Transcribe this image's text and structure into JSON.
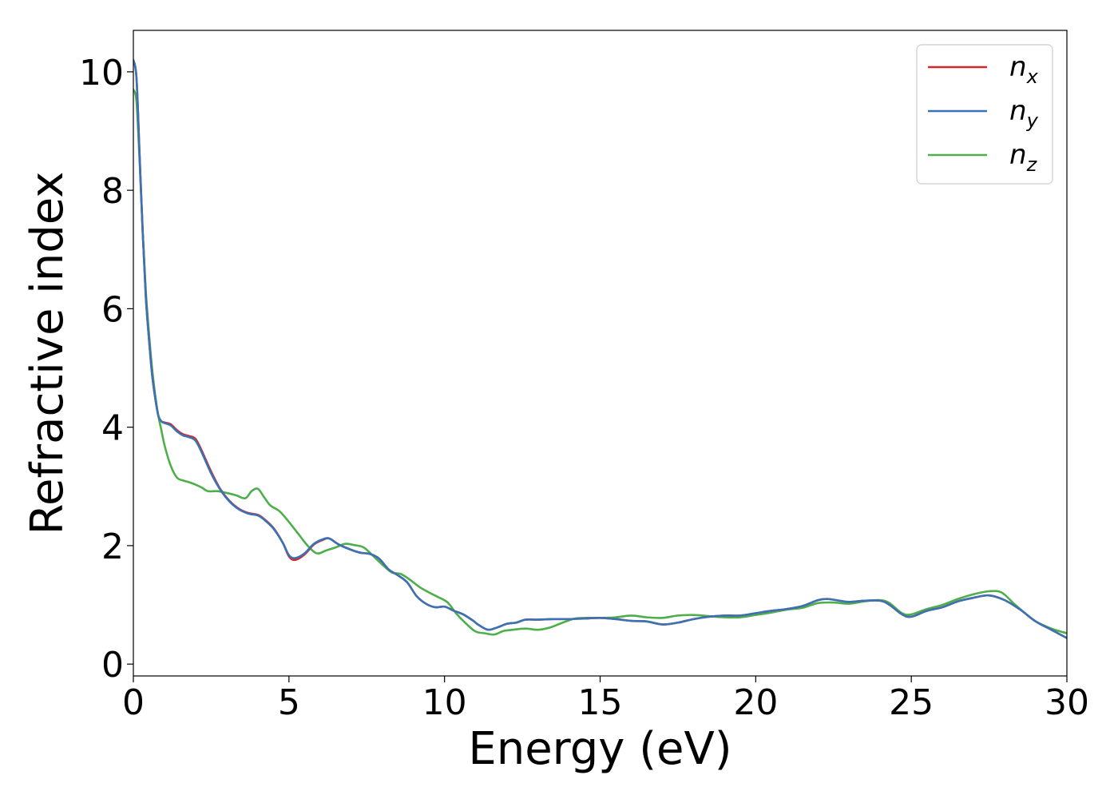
{
  "chart_data": {
    "type": "line",
    "xlabel": "Energy (eV)",
    "ylabel": "Refractive index",
    "xlim": [
      0,
      30
    ],
    "ylim": [
      -0.2,
      10.7
    ],
    "xticks": [
      0,
      5,
      10,
      15,
      20,
      25,
      30
    ],
    "yticks": [
      0,
      2,
      4,
      6,
      8,
      10
    ],
    "grid": false,
    "legend_position": "top-right",
    "series": [
      {
        "name": "n_x",
        "label_base": "n",
        "label_sub": "x",
        "color": "#d62728",
        "points": [
          [
            0,
            10.2
          ],
          [
            0.1,
            9.9
          ],
          [
            0.2,
            8.6
          ],
          [
            0.3,
            7.3
          ],
          [
            0.4,
            6.2
          ],
          [
            0.5,
            5.5
          ],
          [
            0.6,
            4.9
          ],
          [
            0.7,
            4.5
          ],
          [
            0.8,
            4.2
          ],
          [
            0.9,
            4.1
          ],
          [
            1.0,
            4.08
          ],
          [
            1.2,
            4.05
          ],
          [
            1.4,
            3.95
          ],
          [
            1.6,
            3.88
          ],
          [
            1.8,
            3.85
          ],
          [
            2.0,
            3.8
          ],
          [
            2.2,
            3.6
          ],
          [
            2.5,
            3.25
          ],
          [
            2.8,
            2.95
          ],
          [
            3.1,
            2.75
          ],
          [
            3.4,
            2.62
          ],
          [
            3.7,
            2.55
          ],
          [
            4.0,
            2.52
          ],
          [
            4.2,
            2.45
          ],
          [
            4.5,
            2.3
          ],
          [
            4.8,
            2.05
          ],
          [
            5.0,
            1.82
          ],
          [
            5.2,
            1.76
          ],
          [
            5.5,
            1.85
          ],
          [
            5.8,
            2.02
          ],
          [
            6.1,
            2.1
          ],
          [
            6.3,
            2.12
          ],
          [
            6.6,
            2.02
          ],
          [
            7.0,
            1.93
          ],
          [
            7.3,
            1.88
          ],
          [
            7.6,
            1.86
          ],
          [
            7.9,
            1.78
          ],
          [
            8.2,
            1.6
          ],
          [
            8.5,
            1.5
          ],
          [
            8.8,
            1.38
          ],
          [
            9.1,
            1.15
          ],
          [
            9.4,
            1.02
          ],
          [
            9.7,
            0.96
          ],
          [
            10.0,
            0.97
          ],
          [
            10.3,
            0.9
          ],
          [
            10.6,
            0.84
          ],
          [
            10.9,
            0.74
          ],
          [
            11.1,
            0.66
          ],
          [
            11.4,
            0.58
          ],
          [
            11.7,
            0.62
          ],
          [
            12.0,
            0.68
          ],
          [
            12.3,
            0.7
          ],
          [
            12.6,
            0.75
          ],
          [
            13.0,
            0.75
          ],
          [
            13.5,
            0.76
          ],
          [
            14.0,
            0.76
          ],
          [
            14.5,
            0.77
          ],
          [
            15.0,
            0.78
          ],
          [
            15.5,
            0.76
          ],
          [
            16.0,
            0.73
          ],
          [
            16.5,
            0.72
          ],
          [
            17.0,
            0.67
          ],
          [
            17.5,
            0.7
          ],
          [
            18.0,
            0.76
          ],
          [
            18.5,
            0.8
          ],
          [
            19.0,
            0.82
          ],
          [
            19.5,
            0.82
          ],
          [
            20.0,
            0.86
          ],
          [
            20.5,
            0.9
          ],
          [
            21.0,
            0.93
          ],
          [
            21.5,
            0.98
          ],
          [
            22.0,
            1.08
          ],
          [
            22.3,
            1.1
          ],
          [
            22.7,
            1.07
          ],
          [
            23.0,
            1.05
          ],
          [
            23.5,
            1.07
          ],
          [
            24.0,
            1.07
          ],
          [
            24.3,
            1.0
          ],
          [
            24.7,
            0.84
          ],
          [
            25.0,
            0.8
          ],
          [
            25.5,
            0.9
          ],
          [
            26.0,
            0.96
          ],
          [
            26.5,
            1.06
          ],
          [
            27.0,
            1.12
          ],
          [
            27.5,
            1.16
          ],
          [
            28.0,
            1.08
          ],
          [
            28.5,
            0.92
          ],
          [
            29.0,
            0.72
          ],
          [
            29.5,
            0.58
          ],
          [
            30.0,
            0.44
          ]
        ]
      },
      {
        "name": "n_y",
        "label_base": "n",
        "label_sub": "y",
        "color": "#3a73b5",
        "points": [
          [
            0,
            10.2
          ],
          [
            0.1,
            9.9
          ],
          [
            0.2,
            8.6
          ],
          [
            0.3,
            7.3
          ],
          [
            0.4,
            6.2
          ],
          [
            0.5,
            5.5
          ],
          [
            0.6,
            4.9
          ],
          [
            0.7,
            4.5
          ],
          [
            0.8,
            4.2
          ],
          [
            0.9,
            4.1
          ],
          [
            1.0,
            4.07
          ],
          [
            1.2,
            4.03
          ],
          [
            1.4,
            3.93
          ],
          [
            1.6,
            3.86
          ],
          [
            1.8,
            3.83
          ],
          [
            2.0,
            3.77
          ],
          [
            2.2,
            3.57
          ],
          [
            2.5,
            3.22
          ],
          [
            2.8,
            2.94
          ],
          [
            3.1,
            2.74
          ],
          [
            3.4,
            2.61
          ],
          [
            3.7,
            2.54
          ],
          [
            4.0,
            2.51
          ],
          [
            4.2,
            2.44
          ],
          [
            4.5,
            2.29
          ],
          [
            4.8,
            2.05
          ],
          [
            5.0,
            1.84
          ],
          [
            5.2,
            1.79
          ],
          [
            5.5,
            1.87
          ],
          [
            5.8,
            2.03
          ],
          [
            6.1,
            2.11
          ],
          [
            6.3,
            2.12
          ],
          [
            6.6,
            2.02
          ],
          [
            7.0,
            1.93
          ],
          [
            7.3,
            1.88
          ],
          [
            7.6,
            1.86
          ],
          [
            7.9,
            1.78
          ],
          [
            8.2,
            1.6
          ],
          [
            8.5,
            1.5
          ],
          [
            8.8,
            1.38
          ],
          [
            9.1,
            1.15
          ],
          [
            9.4,
            1.02
          ],
          [
            9.7,
            0.96
          ],
          [
            10.0,
            0.97
          ],
          [
            10.3,
            0.9
          ],
          [
            10.6,
            0.84
          ],
          [
            10.9,
            0.74
          ],
          [
            11.1,
            0.66
          ],
          [
            11.4,
            0.58
          ],
          [
            11.7,
            0.62
          ],
          [
            12.0,
            0.68
          ],
          [
            12.3,
            0.7
          ],
          [
            12.6,
            0.75
          ],
          [
            13.0,
            0.75
          ],
          [
            13.5,
            0.76
          ],
          [
            14.0,
            0.76
          ],
          [
            14.5,
            0.77
          ],
          [
            15.0,
            0.78
          ],
          [
            15.5,
            0.76
          ],
          [
            16.0,
            0.73
          ],
          [
            16.5,
            0.72
          ],
          [
            17.0,
            0.67
          ],
          [
            17.5,
            0.7
          ],
          [
            18.0,
            0.76
          ],
          [
            18.5,
            0.8
          ],
          [
            19.0,
            0.82
          ],
          [
            19.5,
            0.82
          ],
          [
            20.0,
            0.86
          ],
          [
            20.5,
            0.9
          ],
          [
            21.0,
            0.93
          ],
          [
            21.5,
            0.98
          ],
          [
            22.0,
            1.08
          ],
          [
            22.3,
            1.1
          ],
          [
            22.7,
            1.07
          ],
          [
            23.0,
            1.05
          ],
          [
            23.5,
            1.07
          ],
          [
            24.0,
            1.07
          ],
          [
            24.3,
            1.0
          ],
          [
            24.7,
            0.84
          ],
          [
            25.0,
            0.8
          ],
          [
            25.5,
            0.9
          ],
          [
            26.0,
            0.96
          ],
          [
            26.5,
            1.06
          ],
          [
            27.0,
            1.12
          ],
          [
            27.5,
            1.16
          ],
          [
            28.0,
            1.08
          ],
          [
            28.5,
            0.92
          ],
          [
            29.0,
            0.72
          ],
          [
            29.5,
            0.58
          ],
          [
            30.0,
            0.44
          ]
        ]
      },
      {
        "name": "n_z",
        "label_base": "n",
        "label_sub": "z",
        "color": "#4daf4a",
        "points": [
          [
            0,
            9.7
          ],
          [
            0.1,
            9.5
          ],
          [
            0.2,
            8.5
          ],
          [
            0.3,
            7.3
          ],
          [
            0.4,
            6.3
          ],
          [
            0.5,
            5.6
          ],
          [
            0.6,
            5.0
          ],
          [
            0.7,
            4.55
          ],
          [
            0.8,
            4.2
          ],
          [
            0.9,
            3.95
          ],
          [
            1.0,
            3.7
          ],
          [
            1.2,
            3.35
          ],
          [
            1.4,
            3.15
          ],
          [
            1.6,
            3.1
          ],
          [
            1.8,
            3.07
          ],
          [
            2.0,
            3.03
          ],
          [
            2.2,
            2.98
          ],
          [
            2.4,
            2.92
          ],
          [
            2.7,
            2.92
          ],
          [
            3.0,
            2.89
          ],
          [
            3.3,
            2.85
          ],
          [
            3.6,
            2.8
          ],
          [
            3.8,
            2.92
          ],
          [
            4.0,
            2.96
          ],
          [
            4.2,
            2.82
          ],
          [
            4.4,
            2.68
          ],
          [
            4.7,
            2.58
          ],
          [
            5.0,
            2.4
          ],
          [
            5.3,
            2.2
          ],
          [
            5.6,
            2.0
          ],
          [
            5.9,
            1.87
          ],
          [
            6.2,
            1.92
          ],
          [
            6.5,
            1.97
          ],
          [
            6.8,
            2.03
          ],
          [
            7.1,
            2.01
          ],
          [
            7.4,
            1.97
          ],
          [
            7.7,
            1.83
          ],
          [
            8.0,
            1.68
          ],
          [
            8.3,
            1.55
          ],
          [
            8.6,
            1.52
          ],
          [
            8.9,
            1.42
          ],
          [
            9.2,
            1.3
          ],
          [
            9.5,
            1.21
          ],
          [
            9.8,
            1.13
          ],
          [
            10.1,
            1.04
          ],
          [
            10.4,
            0.84
          ],
          [
            10.7,
            0.68
          ],
          [
            11.0,
            0.55
          ],
          [
            11.3,
            0.52
          ],
          [
            11.6,
            0.5
          ],
          [
            11.9,
            0.56
          ],
          [
            12.2,
            0.58
          ],
          [
            12.6,
            0.6
          ],
          [
            13.0,
            0.58
          ],
          [
            13.4,
            0.62
          ],
          [
            13.8,
            0.7
          ],
          [
            14.2,
            0.77
          ],
          [
            14.6,
            0.78
          ],
          [
            15.0,
            0.78
          ],
          [
            15.5,
            0.79
          ],
          [
            16.0,
            0.82
          ],
          [
            16.5,
            0.79
          ],
          [
            17.0,
            0.78
          ],
          [
            17.5,
            0.82
          ],
          [
            18.0,
            0.83
          ],
          [
            18.5,
            0.81
          ],
          [
            19.0,
            0.79
          ],
          [
            19.5,
            0.79
          ],
          [
            20.0,
            0.83
          ],
          [
            20.5,
            0.87
          ],
          [
            21.0,
            0.92
          ],
          [
            21.5,
            0.95
          ],
          [
            22.0,
            1.03
          ],
          [
            22.5,
            1.04
          ],
          [
            23.0,
            1.02
          ],
          [
            23.5,
            1.06
          ],
          [
            24.0,
            1.08
          ],
          [
            24.3,
            1.03
          ],
          [
            24.7,
            0.86
          ],
          [
            25.0,
            0.84
          ],
          [
            25.5,
            0.93
          ],
          [
            26.0,
            1.0
          ],
          [
            26.5,
            1.1
          ],
          [
            27.0,
            1.18
          ],
          [
            27.5,
            1.23
          ],
          [
            27.9,
            1.21
          ],
          [
            28.3,
            1.02
          ],
          [
            28.7,
            0.84
          ],
          [
            29.0,
            0.72
          ],
          [
            29.5,
            0.6
          ],
          [
            30.0,
            0.52
          ]
        ]
      }
    ]
  }
}
